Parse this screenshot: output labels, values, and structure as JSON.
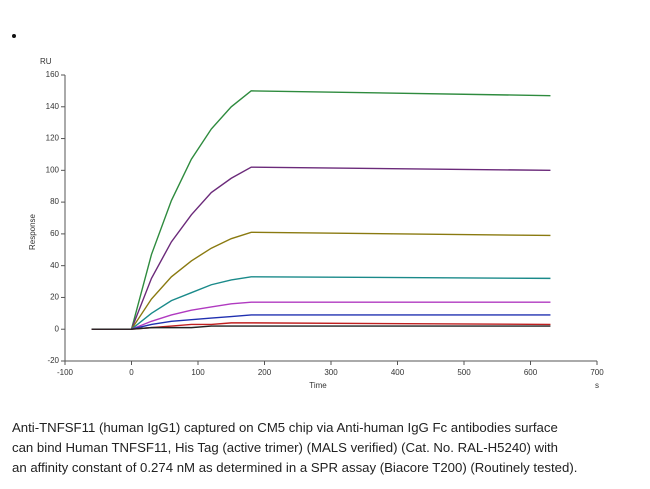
{
  "chart_data": {
    "type": "line",
    "y_unit": "RU",
    "x_unit": "s",
    "x_label": "Time",
    "y_label": "Response",
    "x": [
      -60,
      0,
      30,
      60,
      90,
      120,
      150,
      180,
      630
    ],
    "xlim": [
      -100,
      700
    ],
    "xticks": [
      -100,
      0,
      100,
      200,
      300,
      400,
      500,
      600,
      700
    ],
    "ylim": [
      -20,
      160
    ],
    "yticks": [
      -20,
      0,
      20,
      40,
      60,
      80,
      100,
      120,
      140,
      160
    ],
    "series": [
      {
        "color": "#2e8b3e",
        "values": [
          0,
          0,
          47,
          81,
          107,
          126,
          140,
          150,
          147
        ]
      },
      {
        "color": "#6b2a7a",
        "values": [
          0,
          0,
          32,
          55,
          72,
          86,
          95,
          102,
          100
        ]
      },
      {
        "color": "#8a7a10",
        "values": [
          0,
          0,
          19,
          33,
          43,
          51,
          57,
          61,
          59
        ]
      },
      {
        "color": "#1a8a8a",
        "values": [
          0,
          0,
          10,
          18,
          23,
          28,
          31,
          33,
          32
        ]
      },
      {
        "color": "#b03ac0",
        "values": [
          0,
          0,
          5,
          9,
          12,
          14,
          16,
          17,
          17
        ]
      },
      {
        "color": "#2030b0",
        "values": [
          0,
          0,
          3,
          5,
          6,
          7,
          8,
          9,
          9
        ]
      },
      {
        "color": "#c02020",
        "values": [
          0,
          0,
          1,
          2,
          3,
          3,
          4,
          4,
          3
        ]
      },
      {
        "color": "#222222",
        "values": [
          0,
          0,
          1,
          1,
          1,
          2,
          2,
          2,
          2
        ]
      }
    ]
  },
  "caption": [
    "Anti-TNFSF11 (human IgG1) captured on CM5 chip via Anti-human IgG Fc antibodies surface",
    "can bind Human TNFSF11, His Tag (active trimer) (MALS verified) (Cat. No. RAL-H5240) with",
    "an affinity constant of 0.274 nM as determined in a SPR assay (Biacore T200) (Routinely tested)."
  ]
}
